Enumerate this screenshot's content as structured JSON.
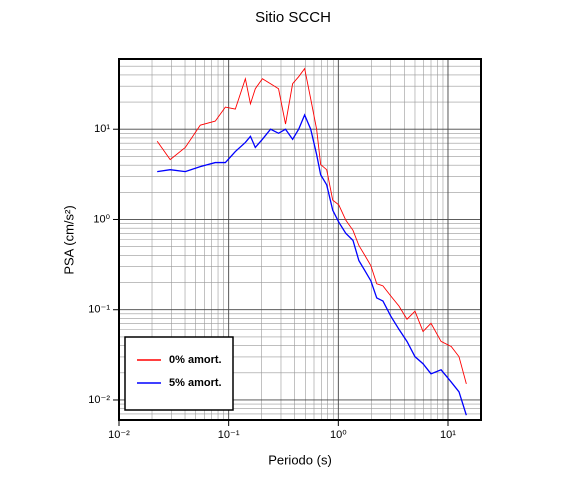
{
  "chart_data": {
    "type": "line",
    "title": "Sitio SCCH",
    "x_label": "Periodo (s)",
    "y_label": "PSA (cm/s²)",
    "log_x": true,
    "log_y": true,
    "grid": true,
    "legend": "lower left",
    "xlim": [
      0.01,
      20
    ],
    "ylim": [
      0.006,
      60
    ],
    "xticks": [
      {
        "value": 0.01,
        "label": "10⁻²"
      },
      {
        "value": 0.1,
        "label": "10⁻¹"
      },
      {
        "value": 1,
        "label": "10⁰"
      },
      {
        "value": 10,
        "label": "10¹"
      }
    ],
    "yticks": [
      {
        "value": 0.01,
        "label": "10⁻²"
      },
      {
        "value": 0.1,
        "label": "10⁻¹"
      },
      {
        "value": 1,
        "label": "10⁰"
      },
      {
        "value": 10,
        "label": "10¹"
      }
    ],
    "x": [
      0.0223,
      0.0293,
      0.0402,
      0.0551,
      0.0755,
      0.0933,
      0.115,
      0.142,
      0.158,
      0.175,
      0.203,
      0.241,
      0.285,
      0.33,
      0.383,
      0.435,
      0.493,
      0.56,
      0.634,
      0.69,
      0.783,
      0.889,
      1.01,
      1.17,
      1.36,
      1.54,
      1.75,
      1.98,
      2.24,
      2.55,
      3.01,
      3.57,
      4.23,
      5.0,
      5.92,
      7.0,
      8.65,
      10.7,
      12.6,
      14.7
    ],
    "series": [
      {
        "name": "0% amort.",
        "color": "#ff0000",
        "values": [
          7.35,
          4.61,
          6.28,
          11.1,
          12.3,
          17.6,
          16.7,
          36.3,
          19.1,
          28.1,
          36.3,
          31.9,
          28.1,
          11.4,
          31.9,
          38.2,
          47.0,
          21.7,
          10,
          4.06,
          3.56,
          1.64,
          1.45,
          0.982,
          0.759,
          0.515,
          0.398,
          0.308,
          0.194,
          0.184,
          0.142,
          0.11,
          0.0785,
          0.0964,
          0.0575,
          0.0708,
          0.0445,
          0.0391,
          0.0302,
          0.0151
        ]
      },
      {
        "name": "5% amort.",
        "color": "#0000ff",
        "values": [
          3.39,
          3.56,
          3.39,
          3.85,
          4.27,
          4.27,
          5.66,
          7.14,
          8.35,
          6.28,
          7.73,
          10,
          9.02,
          10,
          7.73,
          10,
          14.4,
          10,
          5.25,
          3.13,
          2.42,
          1.27,
          0.933,
          0.703,
          0.587,
          0.35,
          0.27,
          0.209,
          0.135,
          0.125,
          0.0848,
          0.0607,
          0.0445,
          0.0302,
          0.0252,
          0.0195,
          0.0216,
          0.0158,
          0.0123,
          0.00678
        ]
      }
    ]
  }
}
